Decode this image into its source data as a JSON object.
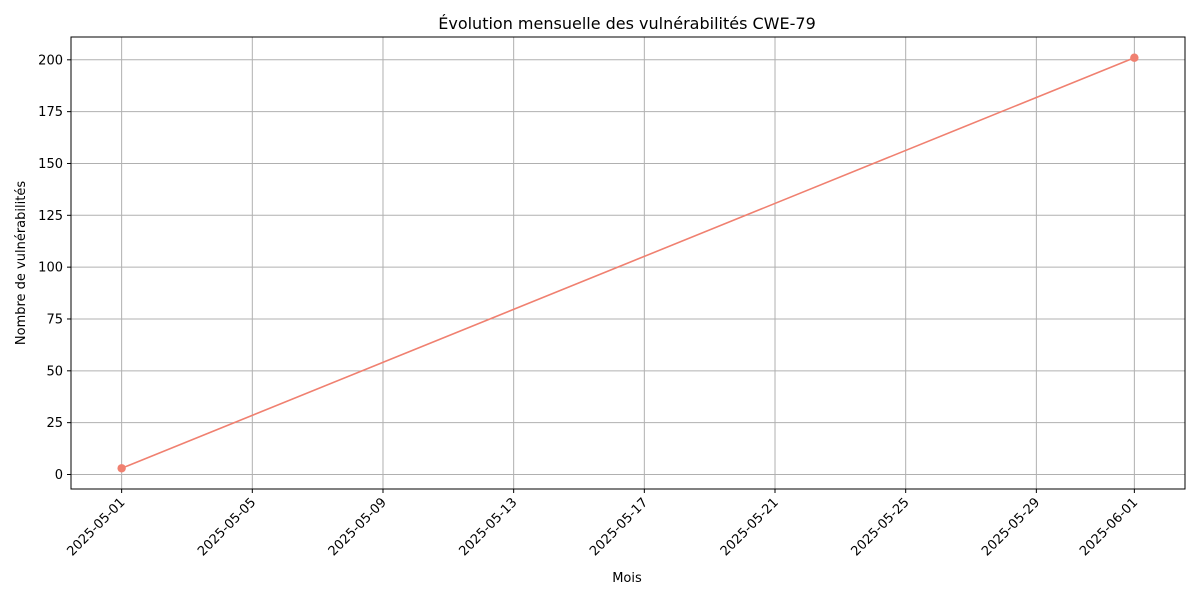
{
  "chart_data": {
    "type": "line",
    "title": "Évolution mensuelle des vulnérabilités CWE-79",
    "xlabel": "Mois",
    "ylabel": "Nombre de vulnérabilités",
    "x": [
      "2025-05-01",
      "2025-06-01"
    ],
    "series": [
      {
        "values": [
          3,
          201
        ],
        "color": "#f08070",
        "marker": "circle"
      }
    ],
    "x_ticks": [
      "2025-05-01",
      "2025-05-05",
      "2025-05-09",
      "2025-05-13",
      "2025-05-17",
      "2025-05-21",
      "2025-05-25",
      "2025-05-29",
      "2025-06-01"
    ],
    "y_ticks": [
      0,
      25,
      50,
      75,
      100,
      125,
      150,
      175,
      200
    ],
    "xlim": [
      "2025-04-29.5",
      "2025-06-02.5"
    ],
    "ylim": [
      -7,
      211
    ],
    "grid": true,
    "legend": "none"
  }
}
